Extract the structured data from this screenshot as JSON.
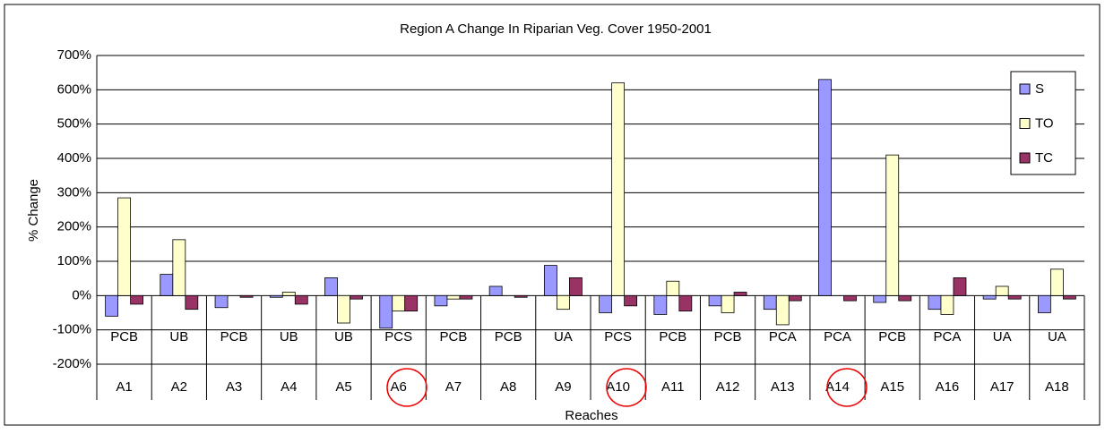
{
  "chart_data": {
    "type": "bar",
    "title": "Region A Change In Riparian Veg. Cover 1950-2001",
    "y_label": "% Change",
    "x_label": "Reaches",
    "categories": [
      "A1",
      "A2",
      "A3",
      "A4",
      "A5",
      "A6",
      "A7",
      "A8",
      "A9",
      "A10",
      "A11",
      "A12",
      "A13",
      "A14",
      "A15",
      "A16",
      "A17",
      "A18"
    ],
    "category_types": [
      "PCB",
      "UB",
      "PCB",
      "UB",
      "UB",
      "PCS",
      "PCB",
      "PCB",
      "UA",
      "PCS",
      "PCB",
      "PCB",
      "PCA",
      "PCA",
      "PCB",
      "PCA",
      "UA",
      "UA"
    ],
    "series": [
      {
        "name": "S",
        "color": "#9999ff",
        "values": [
          -60,
          62,
          -35,
          -5,
          52,
          -95,
          -30,
          27,
          88,
          -50,
          -55,
          -30,
          -40,
          630,
          -20,
          -40,
          -10,
          -50
        ]
      },
      {
        "name": "TO",
        "color": "#ffffcc",
        "values": [
          285,
          163,
          0,
          10,
          -80,
          -45,
          -10,
          0,
          -40,
          620,
          42,
          -50,
          -85,
          0,
          410,
          -55,
          27,
          77
        ]
      },
      {
        "name": "TC",
        "color": "#993366",
        "values": [
          -25,
          -40,
          -5,
          -25,
          -10,
          -45,
          -10,
          -5,
          52,
          -30,
          -45,
          10,
          -15,
          -15,
          -15,
          52,
          -10,
          -10
        ]
      }
    ],
    "ylim": [
      -200,
      700
    ],
    "yticks": [
      {
        "value": -200,
        "label": "-200%"
      },
      {
        "value": -100,
        "label": "-100%"
      },
      {
        "value": 0,
        "label": "0%"
      },
      {
        "value": 100,
        "label": "100%"
      },
      {
        "value": 200,
        "label": "200%"
      },
      {
        "value": 300,
        "label": "300%"
      },
      {
        "value": 400,
        "label": "400%"
      },
      {
        "value": 500,
        "label": "500%"
      },
      {
        "value": 600,
        "label": "600%"
      },
      {
        "value": 700,
        "label": "700%"
      }
    ],
    "grid": true,
    "legend": "top-right"
  }
}
